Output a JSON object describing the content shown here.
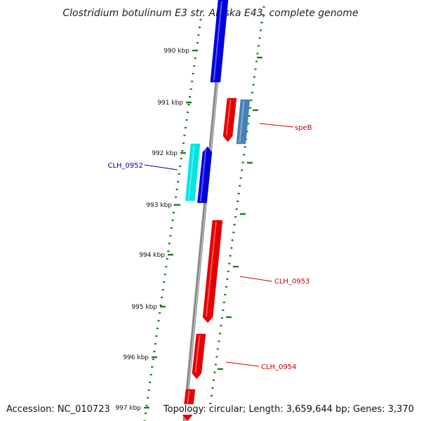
{
  "title": "Clostridium botulinum E3 str. Alaska E43, complete genome",
  "accession": "Accession: NC_010723",
  "summary": "Topology: circular; Length: 3,659,644 bp; Genes: 3,370",
  "colors": {
    "backbone": "#888888",
    "tick_ring": "#1e7a1e",
    "red": "#e60000",
    "blue": "#0000dd",
    "cyan": "#00e5e5",
    "steelblue": "#4682b4",
    "label_red": "#cc0000",
    "label_blue": "#0000aa"
  },
  "ticks": [
    {
      "label": "990 kbp"
    },
    {
      "label": "991 kbp"
    },
    {
      "label": "992 kbp"
    },
    {
      "label": "993 kbp"
    },
    {
      "label": "994 kbp"
    },
    {
      "label": "995 kbp"
    },
    {
      "label": "996 kbp"
    },
    {
      "label": "997 kbp"
    }
  ],
  "genes": [
    {
      "color": "blue"
    },
    {
      "color": "red",
      "label": "speB"
    },
    {
      "color": "steelblue"
    },
    {
      "color": "cyan"
    },
    {
      "color": "blue",
      "label": "CLH_0952"
    },
    {
      "color": "red",
      "label": "CLH_0953"
    },
    {
      "color": "red",
      "label": "CLH_0954"
    },
    {
      "color": "red"
    }
  ]
}
